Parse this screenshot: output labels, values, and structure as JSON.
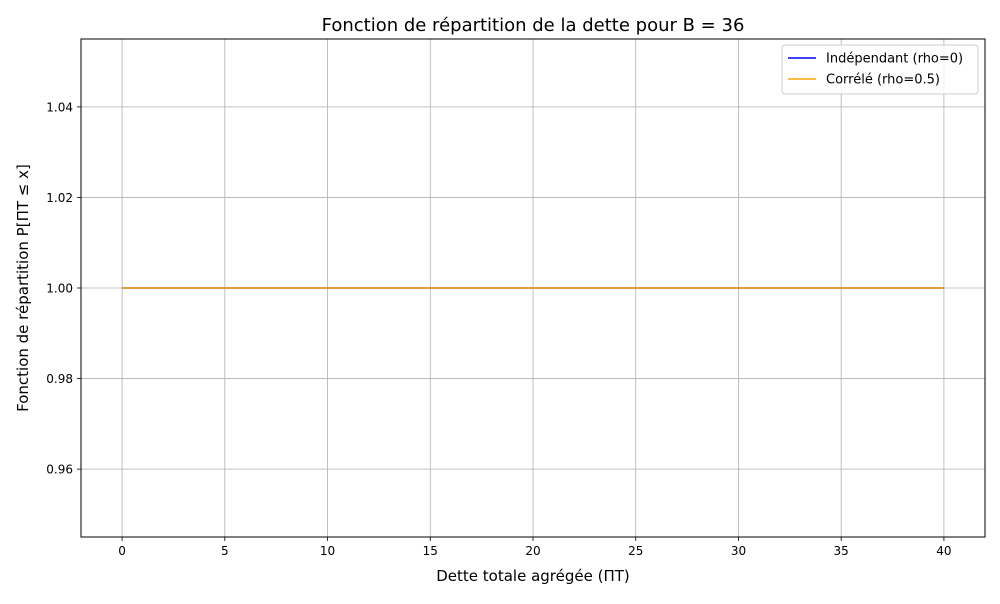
{
  "chart_data": {
    "type": "line",
    "title": "Fonction de répartition de la dette pour B = 36",
    "xlabel": "Dette totale agrégée (ΠT)",
    "ylabel": "Fonction de répartition P[ΠT ≤ x]",
    "xlim": [
      -2,
      42
    ],
    "ylim": [
      0.945,
      1.055
    ],
    "xticks": [
      0,
      5,
      10,
      15,
      20,
      25,
      30,
      35,
      40
    ],
    "yticks": [
      0.96,
      0.98,
      1.0,
      1.02,
      1.04
    ],
    "ytick_labels": [
      "0.96",
      "0.98",
      "1.00",
      "1.02",
      "1.04"
    ],
    "grid": true,
    "legend_position": "top-right",
    "series": [
      {
        "name": "Indépendant (rho=0)",
        "color": "#0000ff",
        "x": [
          0,
          40
        ],
        "y": [
          1.0,
          1.0
        ]
      },
      {
        "name": "Corrélé (rho=0.5)",
        "color": "#ffa500",
        "x": [
          0,
          40
        ],
        "y": [
          1.0,
          1.0
        ]
      }
    ]
  }
}
